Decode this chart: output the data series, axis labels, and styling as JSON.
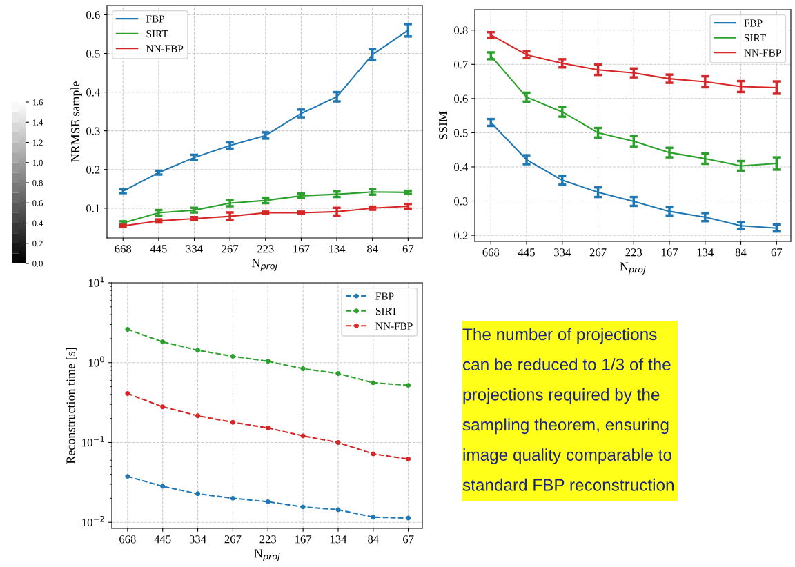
{
  "chart_data": [
    {
      "type": "heatmap",
      "categories": [
        null
      ],
      "y_categories": [
        null,
        null,
        null,
        null,
        null,
        null,
        null,
        null,
        null,
        null,
        null,
        null,
        null,
        null,
        null,
        null
      ],
      "cells": [
        [
          1.55
        ],
        [
          1.45
        ],
        [
          1.35
        ],
        [
          1.25
        ],
        [
          1.15
        ],
        [
          1.05
        ],
        [
          0.95
        ],
        [
          0.85
        ],
        [
          0.75
        ],
        [
          0.65
        ],
        [
          0.55
        ],
        [
          0.45
        ],
        [
          0.35
        ],
        [
          0.25
        ],
        [
          0.15
        ],
        [
          0.05
        ]
      ],
      "clim": [
        0,
        1.6
      ],
      "cticks": [
        {
          "value": 0,
          "label": "0.0"
        },
        0.2,
        0.4,
        0.6,
        0.8,
        {
          "value": 1,
          "label": "1.0"
        },
        1.2,
        1.4,
        1.6
      ]
    },
    {
      "type": "line",
      "ylabel": "NRMSE sample",
      "xlabel": "N$_{proj}$",
      "categories": [
        "668",
        "445",
        "334",
        "267",
        "223",
        "167",
        "134",
        "84",
        "67"
      ],
      "ylim": [
        0.023,
        0.624
      ],
      "yticks": [
        0.1,
        0.2,
        0.3,
        0.4,
        0.5,
        0.6
      ],
      "grid": true,
      "legend": "top left",
      "marker": "none",
      "line_style": "solid",
      "series": [
        {
          "name": "FBP",
          "color": "#1f77b4",
          "values": [
            0.144,
            0.192,
            0.231,
            0.262,
            0.288,
            0.345,
            0.388,
            0.497,
            0.56
          ],
          "errors": [
            0.005,
            0.005,
            0.007,
            0.008,
            0.008,
            0.01,
            0.012,
            0.014,
            0.016
          ]
        },
        {
          "name": "SIRT",
          "color": "#2ca02c",
          "values": [
            0.062,
            0.088,
            0.095,
            0.113,
            0.12,
            0.132,
            0.136,
            0.142,
            0.141
          ],
          "errors": [
            0.004,
            0.007,
            0.006,
            0.008,
            0.007,
            0.006,
            0.007,
            0.007,
            0.004
          ]
        },
        {
          "name": "NN-FBP",
          "color": "#d62728",
          "values": [
            0.054,
            0.067,
            0.073,
            0.079,
            0.088,
            0.088,
            0.091,
            0.1,
            0.105
          ],
          "errors": [
            0.003,
            0.004,
            0.004,
            0.01,
            0.003,
            0.003,
            0.01,
            0.004,
            0.006
          ]
        }
      ]
    },
    {
      "type": "line",
      "ylabel": "SSIM",
      "xlabel": "N$_{proj}$",
      "categories": [
        "668",
        "445",
        "334",
        "267",
        "223",
        "167",
        "134",
        "84",
        "67"
      ],
      "ylim": [
        0.182,
        0.86
      ],
      "yticks": [
        0.2,
        0.3,
        0.4,
        0.5,
        0.6,
        0.7,
        0.8
      ],
      "grid": true,
      "legend": "top right",
      "marker": "none",
      "line_style": "solid",
      "series": [
        {
          "name": "FBP",
          "color": "#1f77b4",
          "values": [
            0.53,
            0.421,
            0.361,
            0.326,
            0.299,
            0.27,
            0.253,
            0.228,
            0.221
          ],
          "errors": [
            0.01,
            0.013,
            0.013,
            0.014,
            0.013,
            0.012,
            0.012,
            0.01,
            0.01
          ]
        },
        {
          "name": "SIRT",
          "color": "#2ca02c",
          "values": [
            0.725,
            0.604,
            0.561,
            0.5,
            0.475,
            0.442,
            0.424,
            0.403,
            0.41
          ],
          "errors": [
            0.01,
            0.013,
            0.014,
            0.014,
            0.015,
            0.014,
            0.015,
            0.014,
            0.018
          ]
        },
        {
          "name": "NN-FBP",
          "color": "#d62728",
          "values": [
            0.786,
            0.728,
            0.703,
            0.684,
            0.675,
            0.658,
            0.649,
            0.635,
            0.632
          ],
          "errors": [
            0.008,
            0.01,
            0.012,
            0.015,
            0.013,
            0.012,
            0.016,
            0.016,
            0.018
          ]
        }
      ]
    },
    {
      "type": "line",
      "ylabel": "Reconstruction time [s]",
      "xlabel": "N$_{proj}$",
      "categories": [
        "668",
        "445",
        "334",
        "267",
        "223",
        "167",
        "134",
        "84",
        "67"
      ],
      "log": "y",
      "ylim": [
        0.0084,
        10
      ],
      "yticks": [
        {
          "value": 0.01,
          "label": "10$^{−2}$"
        },
        {
          "value": 0.1,
          "label": "10$^{−1}$"
        },
        {
          "value": 1,
          "label": "10$^{0}$"
        },
        {
          "value": 10,
          "label": "10$^{1}$"
        }
      ],
      "grid": true,
      "legend": "top right",
      "marker": "circle",
      "line_style": "dashed",
      "series": [
        {
          "name": "FBP",
          "color": "#1f77b4",
          "values": [
            0.0376,
            0.0282,
            0.0228,
            0.02,
            0.0181,
            0.0156,
            0.0144,
            0.0116,
            0.0113
          ]
        },
        {
          "name": "SIRT",
          "color": "#2ca02c",
          "values": [
            2.61,
            1.82,
            1.43,
            1.2,
            1.04,
            0.84,
            0.73,
            0.56,
            0.52
          ]
        },
        {
          "name": "NN-FBP",
          "color": "#d62728",
          "values": [
            0.41,
            0.28,
            0.216,
            0.179,
            0.152,
            0.121,
            0.1,
            0.072,
            0.062
          ]
        }
      ]
    },
    {
      "type": "other",
      "annotations": [
        "The number of projections",
        "can be reduced to 1/3 of the",
        "projections required by the",
        "sampling theorem, ensuring",
        "image quality comparable to",
        "standard FBP reconstruction"
      ]
    }
  ]
}
